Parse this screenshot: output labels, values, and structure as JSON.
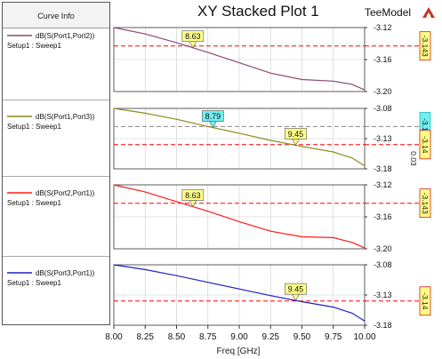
{
  "window": {
    "title": "XY Stacked Plot 1",
    "brand": "TeeModel",
    "legend_header": "Curve Info",
    "logo_icon": "ansys-triangle-logo-icon"
  },
  "chart_data": {
    "type": "line",
    "title": "XY Stacked Plot 1",
    "xlabel": "Freq [GHz]",
    "xlim": [
      8.0,
      10.0
    ],
    "x_ticks": [
      "8.00",
      "8.25",
      "8.50",
      "8.75",
      "9.00",
      "9.25",
      "9.50",
      "9.75",
      "10.00"
    ],
    "grid": true,
    "panels": [
      {
        "series": {
          "name": "dB(S(Port1,Port2))",
          "setup": "Setup1 : Sweep1",
          "color": "#8b4a6e",
          "x": [
            8.0,
            8.25,
            8.5,
            8.75,
            9.0,
            9.25,
            9.5,
            9.75,
            9.9,
            10.0
          ],
          "y": [
            -3.12,
            -3.128,
            -3.139,
            -3.151,
            -3.164,
            -3.177,
            -3.185,
            -3.187,
            -3.191,
            -3.198
          ]
        },
        "ylim": [
          -3.2,
          -3.12
        ],
        "y_ticks": [
          "-3.12",
          "-3.16",
          "-3.20"
        ],
        "markers": [
          {
            "x": 8.63,
            "label": "8.63"
          }
        ],
        "hlines": [
          {
            "y": -3.143,
            "label": "-3.143",
            "color": "#ff0000"
          }
        ]
      },
      {
        "series": {
          "name": "dB(S(Port1,Port3))",
          "setup": "Setup1 : Sweep1",
          "color": "#8b8b1a",
          "x": [
            8.0,
            8.25,
            8.5,
            8.75,
            9.0,
            9.25,
            9.5,
            9.75,
            9.9,
            10.0
          ],
          "y": [
            -3.08,
            -3.088,
            -3.098,
            -3.11,
            -3.121,
            -3.133,
            -3.143,
            -3.152,
            -3.162,
            -3.175
          ]
        },
        "ylim": [
          -3.18,
          -3.08
        ],
        "y_ticks": [
          "-3.08",
          "-3.13",
          "-3.18"
        ],
        "markers": [
          {
            "x": 8.79,
            "label": "8.79",
            "style": "cyan"
          },
          {
            "x": 9.45,
            "label": "9.45"
          }
        ],
        "hlines": [
          {
            "y": -3.11,
            "label": "-3.11",
            "color": "#888888",
            "secondary": "0.03"
          },
          {
            "y": -3.14,
            "label": "-3.14",
            "color": "#ff0000"
          }
        ]
      },
      {
        "series": {
          "name": "dB(S(Port2,Port1))",
          "setup": "Setup1 : Sweep1",
          "color": "#ff1a1a",
          "x": [
            8.0,
            8.25,
            8.5,
            8.75,
            9.0,
            9.25,
            9.5,
            9.75,
            9.9,
            10.0
          ],
          "y": [
            -3.12,
            -3.129,
            -3.141,
            -3.153,
            -3.166,
            -3.178,
            -3.185,
            -3.186,
            -3.192,
            -3.199
          ]
        },
        "ylim": [
          -3.2,
          -3.12
        ],
        "y_ticks": [
          "-3.12",
          "-3.16",
          "-3.20"
        ],
        "markers": [
          {
            "x": 8.63,
            "label": "8.63"
          }
        ],
        "hlines": [
          {
            "y": -3.143,
            "label": "-3.143",
            "color": "#ff0000"
          }
        ]
      },
      {
        "series": {
          "name": "dB(S(Port3,Port1))",
          "setup": "Setup1 : Sweep1",
          "color": "#2020c0",
          "x": [
            8.0,
            8.25,
            8.5,
            8.75,
            9.0,
            9.25,
            9.5,
            9.75,
            9.9,
            10.0
          ],
          "y": [
            -3.08,
            -3.088,
            -3.098,
            -3.109,
            -3.12,
            -3.131,
            -3.141,
            -3.15,
            -3.16,
            -3.173
          ]
        },
        "ylim": [
          -3.18,
          -3.08
        ],
        "y_ticks": [
          "-3.08",
          "-3.13",
          "-3.18"
        ],
        "markers": [
          {
            "x": 9.45,
            "label": "9.45"
          }
        ],
        "hlines": [
          {
            "y": -3.14,
            "label": "-3.14",
            "color": "#ff0000"
          }
        ]
      }
    ]
  }
}
